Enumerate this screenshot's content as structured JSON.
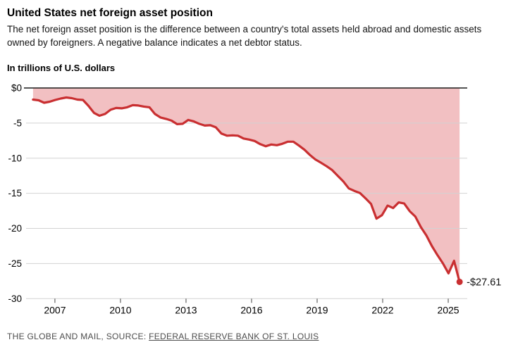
{
  "header": {
    "title": "United States net foreign asset position",
    "subtitle": "The net foreign asset position is the difference between a country's total assets held abroad and domestic assets owned by foreigners. A negative balance indicates a net debtor status.",
    "units_label": "In trillions of U.S. dollars"
  },
  "footer": {
    "credit": "THE GLOBE AND MAIL, SOURCE: ",
    "source_link": "FEDERAL RESERVE BANK OF ST. LOUIS"
  },
  "chart_data": {
    "type": "area",
    "title": "United States net foreign asset position",
    "ylabel": "In trillions of U.S. dollars",
    "grid": "horizontal",
    "legend": "none",
    "x_axis": {
      "min": 2005.68,
      "max": 2025.87,
      "ticks": [
        {
          "label": "2007",
          "year": 2007
        },
        {
          "label": "2010",
          "year": 2010
        },
        {
          "label": "2013",
          "year": 2013
        },
        {
          "label": "2016",
          "year": 2016
        },
        {
          "label": "2019",
          "year": 2019
        },
        {
          "label": "2022",
          "year": 2022
        },
        {
          "label": "2025",
          "year": 2025
        }
      ]
    },
    "y_axis": {
      "min": -30,
      "max": 0,
      "ticks": [
        {
          "label": "$0",
          "value": 0
        },
        {
          "label": "-5",
          "value": -5
        },
        {
          "label": "-10",
          "value": -10
        },
        {
          "label": "-15",
          "value": -15
        },
        {
          "label": "-20",
          "value": -20
        },
        {
          "label": "-25",
          "value": -25
        },
        {
          "label": "-30",
          "value": -30
        }
      ]
    },
    "series": [
      {
        "name": "U.S. net foreign asset position",
        "frequency": "quarterly",
        "start_year": 2006.0,
        "end_year": 2025.52,
        "values": [
          -1.65,
          -1.75,
          -2.1,
          -1.95,
          -1.7,
          -1.5,
          -1.35,
          -1.45,
          -1.65,
          -1.7,
          -2.55,
          -3.55,
          -3.95,
          -3.7,
          -3.1,
          -2.85,
          -2.9,
          -2.75,
          -2.45,
          -2.5,
          -2.65,
          -2.75,
          -3.7,
          -4.2,
          -4.4,
          -4.65,
          -5.15,
          -5.1,
          -4.55,
          -4.75,
          -5.1,
          -5.35,
          -5.3,
          -5.6,
          -6.5,
          -6.8,
          -6.75,
          -6.8,
          -7.2,
          -7.35,
          -7.55,
          -8.0,
          -8.3,
          -8.05,
          -8.15,
          -7.95,
          -7.65,
          -7.65,
          -8.2,
          -8.8,
          -9.55,
          -10.2,
          -10.65,
          -11.15,
          -11.7,
          -12.5,
          -13.3,
          -14.3,
          -14.65,
          -14.95,
          -15.7,
          -16.5,
          -18.6,
          -18.1,
          -16.75,
          -17.1,
          -16.3,
          -16.45,
          -17.55,
          -18.3,
          -19.8,
          -21.0,
          -22.5,
          -23.8,
          -25.0,
          -26.4,
          -24.61,
          -27.61
        ]
      }
    ],
    "end_point": {
      "label": "-$27.61",
      "value": -27.61
    },
    "colors": {
      "line": "#c92f31",
      "fill": "#f2c0c2",
      "zero_line": "#1a1a1a",
      "gridline": "#d2d2d2",
      "tick": "#444444",
      "label": "#000000"
    }
  }
}
